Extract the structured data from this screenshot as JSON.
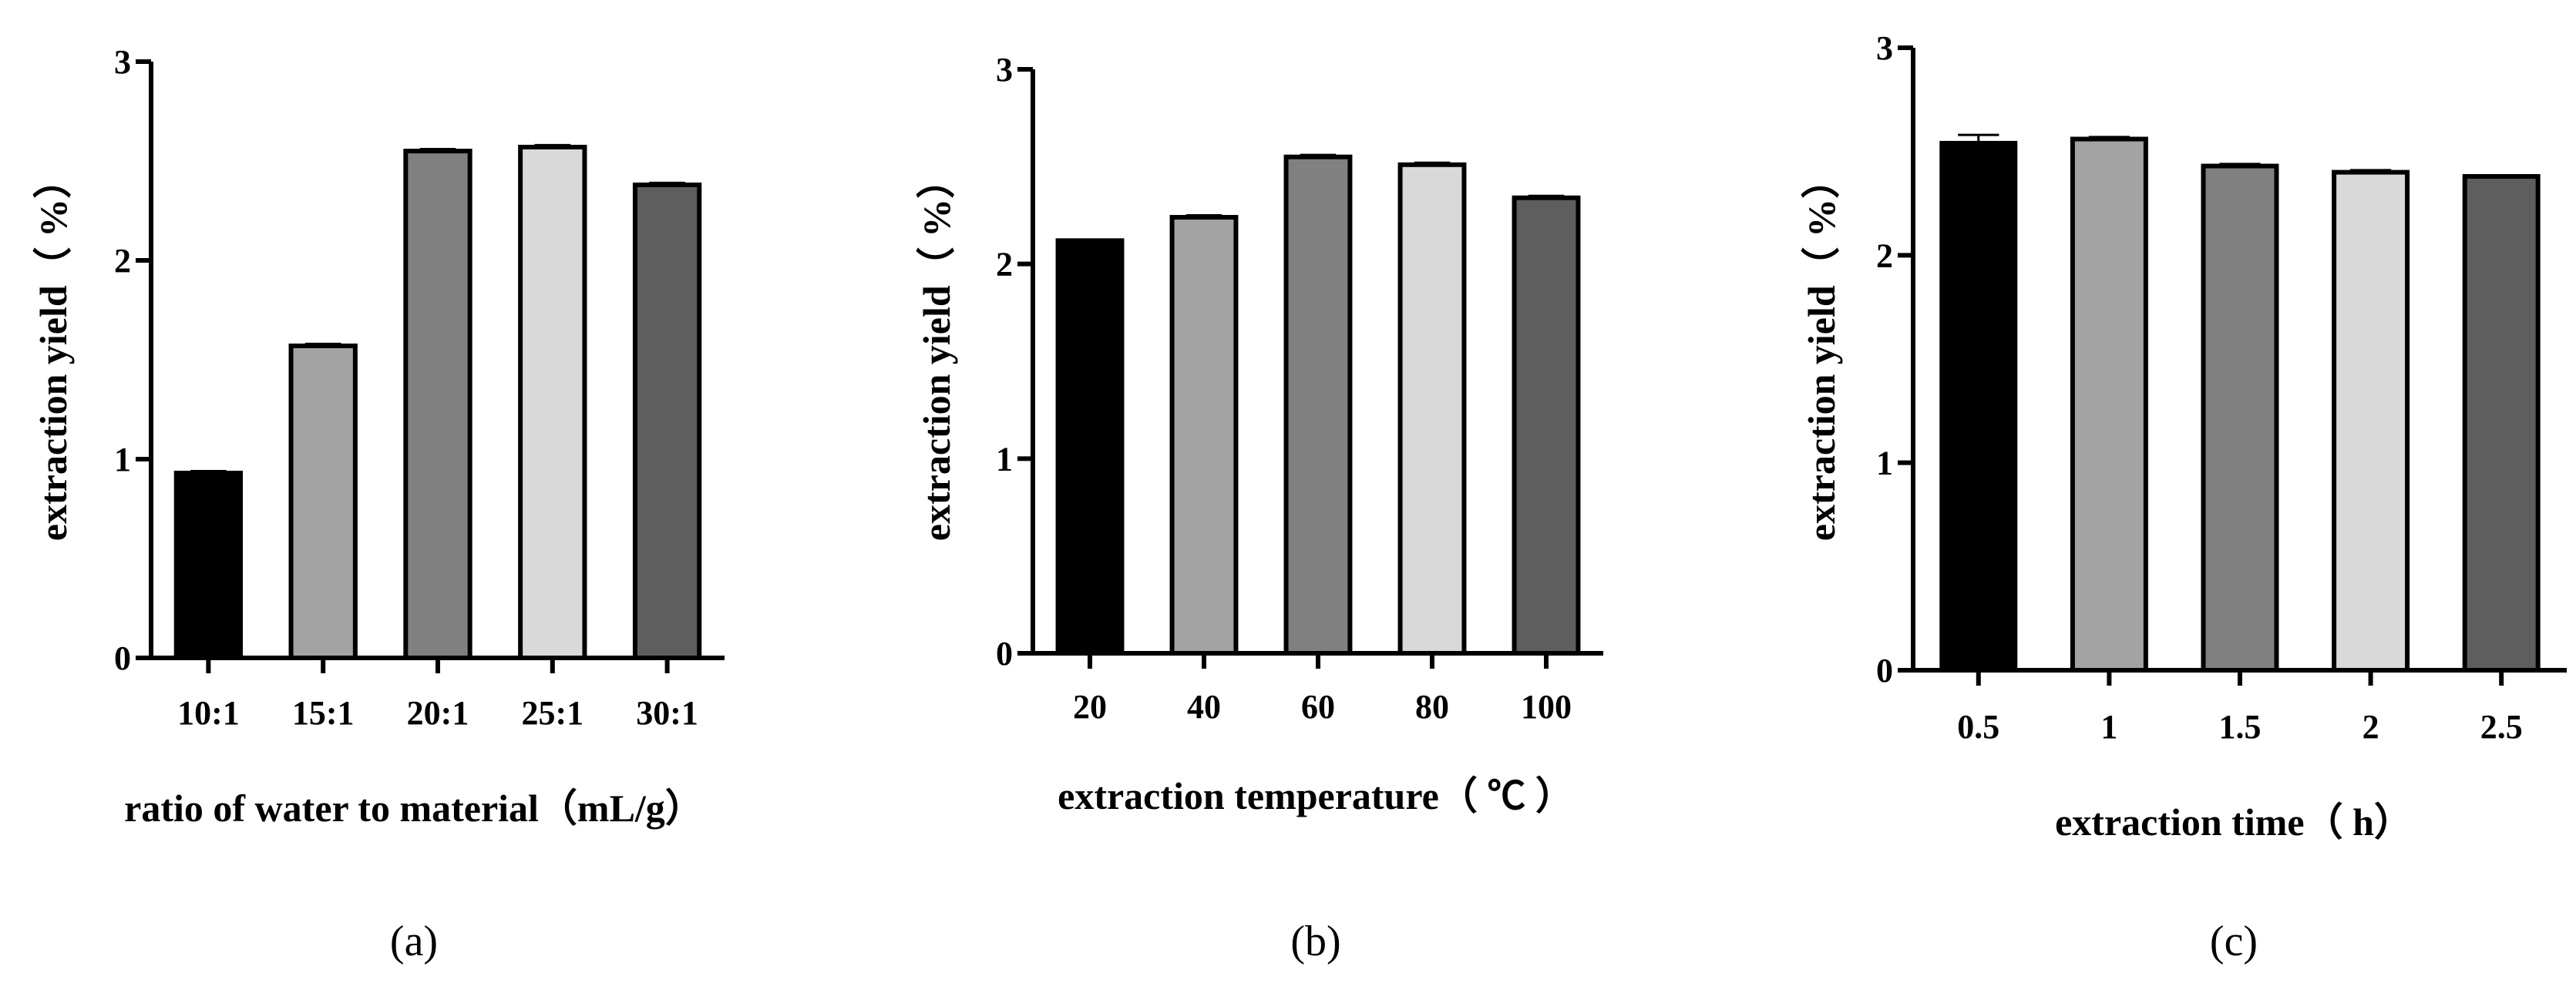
{
  "chart_data": [
    {
      "type": "bar",
      "panel_label": "(a)",
      "categories": [
        "10:1",
        "15:1",
        "20:1",
        "25:1",
        "30:1"
      ],
      "values": [
        0.93,
        1.57,
        2.55,
        2.57,
        2.38
      ],
      "errors": [
        0.01,
        0.01,
        0.01,
        0.01,
        0.01
      ],
      "bar_colors": [
        "#000000",
        "#a3a3a3",
        "#808080",
        "#d9d9d9",
        "#5e5e5e"
      ],
      "xlabel": "ratio of water to material（mL/g）",
      "ylabel": "extraction yield（ %）",
      "ylim": [
        0,
        3
      ],
      "yticks": [
        0,
        1,
        2,
        3
      ],
      "grid": false
    },
    {
      "type": "bar",
      "panel_label": "(b)",
      "categories": [
        "20",
        "40",
        "60",
        "80",
        "100"
      ],
      "values": [
        2.12,
        2.24,
        2.55,
        2.51,
        2.34
      ],
      "errors": [
        0.005,
        0.01,
        0.01,
        0.01,
        0.01
      ],
      "bar_colors": [
        "#000000",
        "#a3a3a3",
        "#808080",
        "#d9d9d9",
        "#5e5e5e"
      ],
      "xlabel": "extraction temperature（ ℃ ）",
      "ylabel": "extraction yield（ %）",
      "ylim": [
        0,
        3
      ],
      "yticks": [
        0,
        1,
        2,
        3
      ],
      "grid": false
    },
    {
      "type": "bar",
      "panel_label": "(c)",
      "categories": [
        "0.5",
        "1",
        "1.5",
        "2",
        "2.5"
      ],
      "values": [
        2.54,
        2.56,
        2.43,
        2.4,
        2.38
      ],
      "errors": [
        0.04,
        0.01,
        0.01,
        0.01,
        0.005
      ],
      "bar_colors": [
        "#000000",
        "#a3a3a3",
        "#808080",
        "#d9d9d9",
        "#5e5e5e"
      ],
      "xlabel": "extraction time（ h）",
      "ylabel": "extraction yield（ %）",
      "ylim": [
        0,
        3
      ],
      "yticks": [
        0,
        1,
        2,
        3
      ],
      "grid": false
    }
  ]
}
